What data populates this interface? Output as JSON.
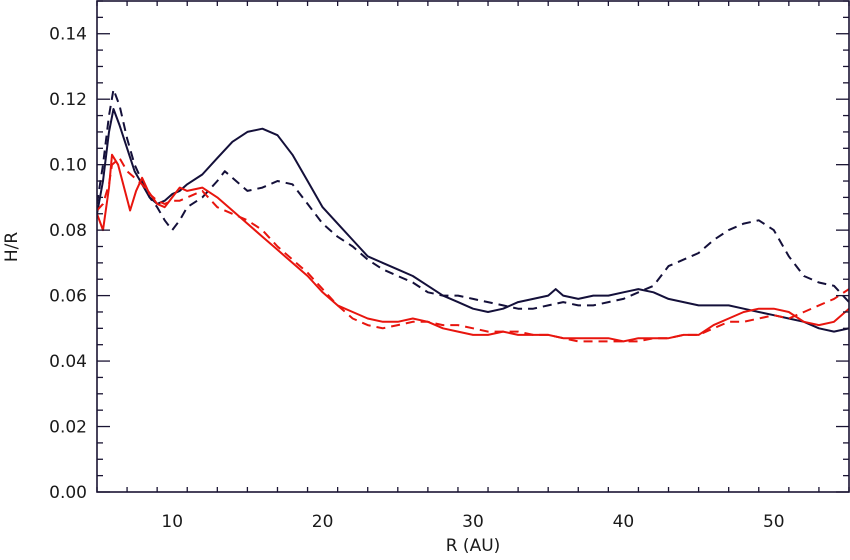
{
  "chart_data": {
    "type": "line",
    "title": "",
    "xlabel": "R (AU)",
    "ylabel": "H/R",
    "xlim": [
      5,
      55
    ],
    "ylim": [
      0,
      0.15
    ],
    "x_ticks": [
      10,
      20,
      30,
      40,
      50
    ],
    "x_tick_labels": [
      "10",
      "20",
      "30",
      "40",
      "50"
    ],
    "y_ticks": [
      0,
      0.02,
      0.04,
      0.06,
      0.08,
      0.1,
      0.12,
      0.14
    ],
    "y_tick_labels": [
      "0.00",
      "0.02",
      "0.04",
      "0.06",
      "0.08",
      "0.10",
      "0.12",
      "0.14"
    ],
    "grid": false,
    "legend": "none",
    "series": [
      {
        "color": "#14103a",
        "dash": "solid",
        "points": [
          [
            5,
            0.085
          ],
          [
            5.4,
            0.095
          ],
          [
            5.8,
            0.11
          ],
          [
            6.1,
            0.117
          ],
          [
            6.5,
            0.112
          ],
          [
            7,
            0.105
          ],
          [
            7.5,
            0.098
          ],
          [
            8,
            0.094
          ],
          [
            8.5,
            0.09
          ],
          [
            9,
            0.088
          ],
          [
            9.5,
            0.089
          ],
          [
            10,
            0.091
          ],
          [
            10.5,
            0.092
          ],
          [
            11,
            0.094
          ],
          [
            12,
            0.097
          ],
          [
            13,
            0.102
          ],
          [
            14,
            0.107
          ],
          [
            15,
            0.11
          ],
          [
            16,
            0.111
          ],
          [
            17,
            0.109
          ],
          [
            18,
            0.103
          ],
          [
            19,
            0.095
          ],
          [
            20,
            0.087
          ],
          [
            21,
            0.082
          ],
          [
            22,
            0.077
          ],
          [
            23,
            0.072
          ],
          [
            24,
            0.07
          ],
          [
            25,
            0.068
          ],
          [
            26,
            0.066
          ],
          [
            27,
            0.063
          ],
          [
            28,
            0.06
          ],
          [
            29,
            0.058
          ],
          [
            30,
            0.056
          ],
          [
            31,
            0.055
          ],
          [
            32,
            0.056
          ],
          [
            33,
            0.058
          ],
          [
            34,
            0.059
          ],
          [
            35,
            0.06
          ],
          [
            35.5,
            0.062
          ],
          [
            36,
            0.06
          ],
          [
            37,
            0.059
          ],
          [
            38,
            0.06
          ],
          [
            39,
            0.06
          ],
          [
            40,
            0.061
          ],
          [
            41,
            0.062
          ],
          [
            42,
            0.061
          ],
          [
            43,
            0.059
          ],
          [
            44,
            0.058
          ],
          [
            45,
            0.057
          ],
          [
            46,
            0.057
          ],
          [
            47,
            0.057
          ],
          [
            48,
            0.056
          ],
          [
            49,
            0.055
          ],
          [
            50,
            0.054
          ],
          [
            51,
            0.053
          ],
          [
            52,
            0.052
          ],
          [
            53,
            0.05
          ],
          [
            54,
            0.049
          ],
          [
            55,
            0.05
          ]
        ]
      },
      {
        "color": "#14103a",
        "dash": "dashed",
        "points": [
          [
            5,
            0.088
          ],
          [
            5.4,
            0.1
          ],
          [
            5.8,
            0.115
          ],
          [
            6.1,
            0.123
          ],
          [
            6.5,
            0.118
          ],
          [
            7,
            0.108
          ],
          [
            7.5,
            0.1
          ],
          [
            8,
            0.095
          ],
          [
            8.5,
            0.09
          ],
          [
            9,
            0.087
          ],
          [
            9.5,
            0.083
          ],
          [
            10,
            0.08
          ],
          [
            10.5,
            0.083
          ],
          [
            11,
            0.087
          ],
          [
            12,
            0.09
          ],
          [
            13,
            0.095
          ],
          [
            13.5,
            0.098
          ],
          [
            14,
            0.096
          ],
          [
            15,
            0.092
          ],
          [
            16,
            0.093
          ],
          [
            17,
            0.095
          ],
          [
            18,
            0.094
          ],
          [
            19,
            0.088
          ],
          [
            20,
            0.082
          ],
          [
            21,
            0.078
          ],
          [
            22,
            0.075
          ],
          [
            23,
            0.071
          ],
          [
            24,
            0.068
          ],
          [
            25,
            0.066
          ],
          [
            26,
            0.064
          ],
          [
            27,
            0.061
          ],
          [
            28,
            0.06
          ],
          [
            29,
            0.06
          ],
          [
            30,
            0.059
          ],
          [
            31,
            0.058
          ],
          [
            32,
            0.057
          ],
          [
            33,
            0.056
          ],
          [
            34,
            0.056
          ],
          [
            35,
            0.057
          ],
          [
            36,
            0.058
          ],
          [
            37,
            0.057
          ],
          [
            38,
            0.057
          ],
          [
            39,
            0.058
          ],
          [
            40,
            0.059
          ],
          [
            41,
            0.061
          ],
          [
            42,
            0.063
          ],
          [
            43,
            0.069
          ],
          [
            44,
            0.071
          ],
          [
            45,
            0.073
          ],
          [
            46,
            0.077
          ],
          [
            47,
            0.08
          ],
          [
            48,
            0.082
          ],
          [
            49,
            0.083
          ],
          [
            50,
            0.08
          ],
          [
            51,
            0.072
          ],
          [
            52,
            0.066
          ],
          [
            53,
            0.064
          ],
          [
            54,
            0.063
          ],
          [
            55,
            0.058
          ]
        ]
      },
      {
        "color": "#e8150e",
        "dash": "solid",
        "points": [
          [
            5,
            0.085
          ],
          [
            5.4,
            0.08
          ],
          [
            5.8,
            0.093
          ],
          [
            6,
            0.103
          ],
          [
            6.4,
            0.1
          ],
          [
            6.8,
            0.093
          ],
          [
            7.2,
            0.086
          ],
          [
            7.6,
            0.092
          ],
          [
            8,
            0.096
          ],
          [
            8.4,
            0.092
          ],
          [
            9,
            0.088
          ],
          [
            9.5,
            0.087
          ],
          [
            10,
            0.09
          ],
          [
            10.5,
            0.093
          ],
          [
            11,
            0.092
          ],
          [
            12,
            0.093
          ],
          [
            13,
            0.09
          ],
          [
            14,
            0.086
          ],
          [
            15,
            0.082
          ],
          [
            16,
            0.078
          ],
          [
            17,
            0.074
          ],
          [
            18,
            0.07
          ],
          [
            19,
            0.066
          ],
          [
            20,
            0.061
          ],
          [
            21,
            0.057
          ],
          [
            22,
            0.055
          ],
          [
            23,
            0.053
          ],
          [
            24,
            0.052
          ],
          [
            25,
            0.052
          ],
          [
            26,
            0.053
          ],
          [
            27,
            0.052
          ],
          [
            28,
            0.05
          ],
          [
            29,
            0.049
          ],
          [
            30,
            0.048
          ],
          [
            31,
            0.048
          ],
          [
            32,
            0.049
          ],
          [
            33,
            0.048
          ],
          [
            34,
            0.048
          ],
          [
            35,
            0.048
          ],
          [
            36,
            0.047
          ],
          [
            37,
            0.047
          ],
          [
            38,
            0.047
          ],
          [
            39,
            0.047
          ],
          [
            40,
            0.046
          ],
          [
            41,
            0.047
          ],
          [
            42,
            0.047
          ],
          [
            43,
            0.047
          ],
          [
            44,
            0.048
          ],
          [
            45,
            0.048
          ],
          [
            46,
            0.051
          ],
          [
            47,
            0.053
          ],
          [
            48,
            0.055
          ],
          [
            49,
            0.056
          ],
          [
            50,
            0.056
          ],
          [
            51,
            0.055
          ],
          [
            52,
            0.052
          ],
          [
            53,
            0.051
          ],
          [
            54,
            0.052
          ],
          [
            55,
            0.056
          ]
        ]
      },
      {
        "color": "#e8150e",
        "dash": "dashed",
        "points": [
          [
            5,
            0.086
          ],
          [
            5.4,
            0.088
          ],
          [
            5.8,
            0.094
          ],
          [
            6,
            0.1
          ],
          [
            6.5,
            0.102
          ],
          [
            7,
            0.098
          ],
          [
            7.5,
            0.096
          ],
          [
            8,
            0.094
          ],
          [
            8.5,
            0.091
          ],
          [
            9,
            0.089
          ],
          [
            9.5,
            0.088
          ],
          [
            10,
            0.089
          ],
          [
            10.5,
            0.089
          ],
          [
            11,
            0.09
          ],
          [
            12,
            0.092
          ],
          [
            13,
            0.087
          ],
          [
            14,
            0.085
          ],
          [
            15,
            0.083
          ],
          [
            16,
            0.08
          ],
          [
            17,
            0.075
          ],
          [
            18,
            0.071
          ],
          [
            19,
            0.067
          ],
          [
            20,
            0.062
          ],
          [
            21,
            0.057
          ],
          [
            22,
            0.053
          ],
          [
            23,
            0.051
          ],
          [
            24,
            0.05
          ],
          [
            25,
            0.051
          ],
          [
            26,
            0.052
          ],
          [
            27,
            0.052
          ],
          [
            28,
            0.051
          ],
          [
            29,
            0.051
          ],
          [
            30,
            0.05
          ],
          [
            31,
            0.049
          ],
          [
            32,
            0.049
          ],
          [
            33,
            0.049
          ],
          [
            34,
            0.048
          ],
          [
            35,
            0.048
          ],
          [
            36,
            0.047
          ],
          [
            37,
            0.046
          ],
          [
            38,
            0.046
          ],
          [
            39,
            0.046
          ],
          [
            40,
            0.046
          ],
          [
            41,
            0.046
          ],
          [
            42,
            0.047
          ],
          [
            43,
            0.047
          ],
          [
            44,
            0.048
          ],
          [
            45,
            0.048
          ],
          [
            46,
            0.05
          ],
          [
            47,
            0.052
          ],
          [
            48,
            0.052
          ],
          [
            49,
            0.053
          ],
          [
            50,
            0.054
          ],
          [
            51,
            0.053
          ],
          [
            52,
            0.055
          ],
          [
            53,
            0.057
          ],
          [
            54,
            0.059
          ],
          [
            55,
            0.062
          ]
        ]
      }
    ]
  }
}
